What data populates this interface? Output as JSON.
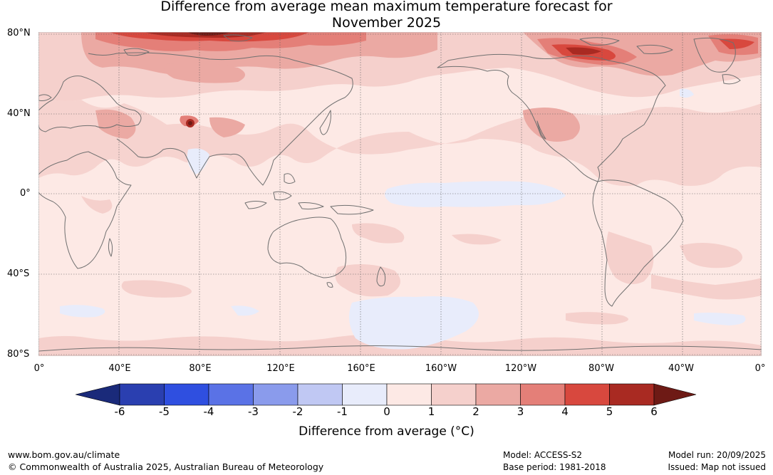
{
  "title": {
    "line1": "Difference from average mean maximum temperature forecast for",
    "line2": "November 2025"
  },
  "map": {
    "latitude_labels": [
      "80°N",
      "40°N",
      "0°",
      "40°S",
      "80°S"
    ],
    "longitude_labels": [
      "0°",
      "40°E",
      "80°E",
      "120°E",
      "160°E",
      "160°W",
      "120°W",
      "80°W",
      "40°W",
      "0°"
    ],
    "ocean_background_color": "#fde9e5",
    "coastline_color": "#707070",
    "regions": [
      {
        "name": "arctic-eurasia-warm",
        "category": "1 to 2"
      },
      {
        "name": "siberia-strong-warm",
        "category": "4 to 6"
      },
      {
        "name": "arctic-canada-warm",
        "category": "3 to 5"
      },
      {
        "name": "greenland-warm",
        "category": "3 to 5"
      },
      {
        "name": "equatorial-pacific-cool",
        "category": "-1 to 0"
      },
      {
        "name": "southern-ocean-cool",
        "category": "-1 to 0"
      },
      {
        "name": "tibet-hotspot",
        "category": "3 to 4"
      },
      {
        "name": "north-america-warm",
        "category": "1 to 2"
      },
      {
        "name": "antarctic-coast-warm",
        "category": "1 to 2"
      }
    ]
  },
  "colorbar": {
    "ticks": [
      "-6",
      "-5",
      "-4",
      "-3",
      "-2",
      "-1",
      "0",
      "1",
      "2",
      "3",
      "4",
      "5",
      "6"
    ],
    "colors": [
      "#1a2a7a",
      "#2a3fb0",
      "#2f4fe0",
      "#5a72e6",
      "#8a9bec",
      "#c0c8f3",
      "#e8ecfb",
      "#fde9e5",
      "#f5d0cc",
      "#eba9a3",
      "#e47f78",
      "#d8483e",
      "#a92a22",
      "#6e1a15"
    ],
    "label": "Difference from average (°C)"
  },
  "footer": {
    "url": "www.bom.gov.au/climate",
    "copyright": "© Commonwealth of Australia 2025, Australian Bureau of Meteorology",
    "model": "Model: ACCESS-S2",
    "base_period": "Base period: 1981-2018",
    "model_run": "Model run: 20/09/2025",
    "issued": "Issued: Map not issued"
  }
}
